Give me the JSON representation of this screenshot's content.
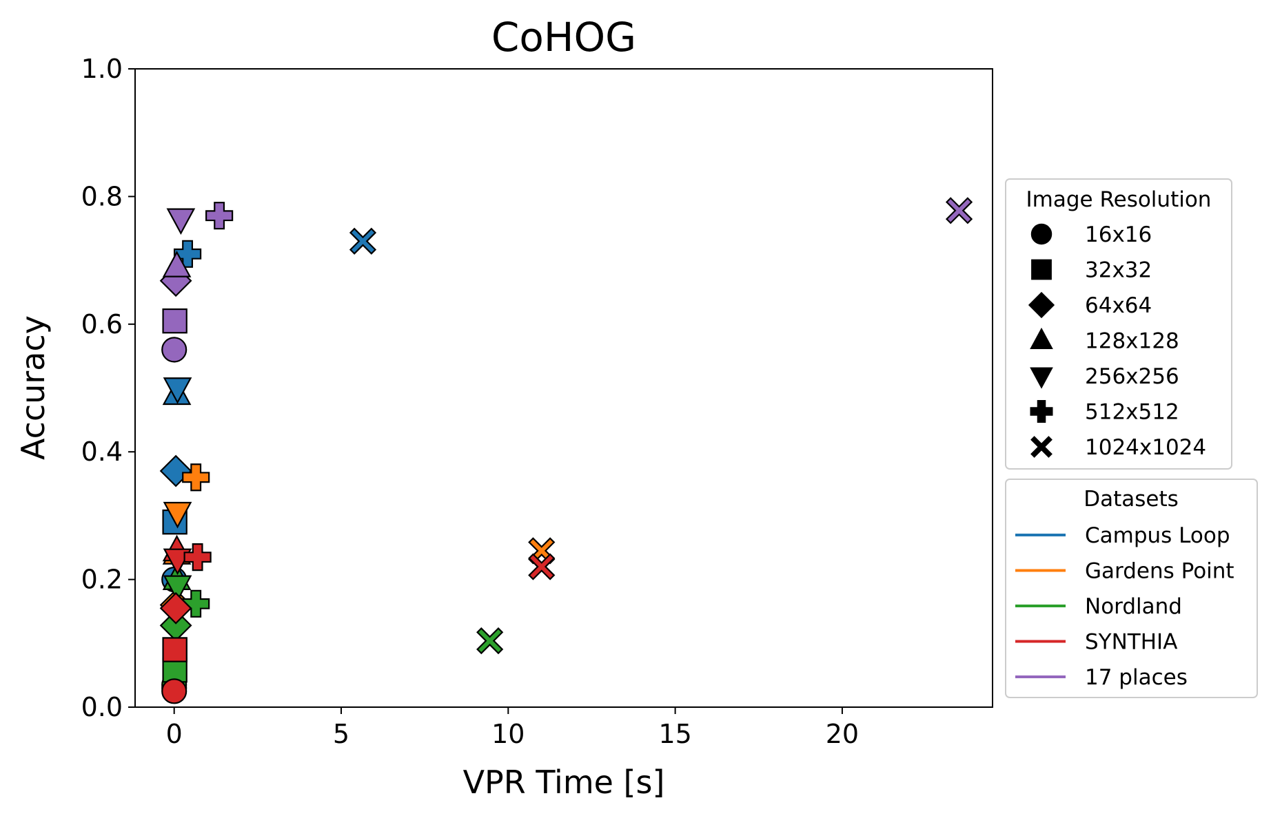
{
  "chart_data": {
    "type": "scatter",
    "title": "CoHOG",
    "xlabel": "VPR Time [s]",
    "ylabel": "Accuracy",
    "xlim": [
      -1.17,
      24.5
    ],
    "ylim": [
      0.0,
      1.0
    ],
    "xticks": [
      0,
      5,
      10,
      15,
      20
    ],
    "xtick_labels": [
      "0",
      "5",
      "10",
      "15",
      "20"
    ],
    "yticks": [
      0.0,
      0.2,
      0.4,
      0.6,
      0.8,
      1.0
    ],
    "ytick_labels": [
      "0.0",
      "0.2",
      "0.4",
      "0.6",
      "0.8",
      "1.0"
    ],
    "grid": false,
    "legend_placement": "outside right",
    "resolution_legend": {
      "title": "Image Resolution",
      "entries": [
        {
          "label": "16x16",
          "marker": "circle"
        },
        {
          "label": "32x32",
          "marker": "square"
        },
        {
          "label": "64x64",
          "marker": "diamond"
        },
        {
          "label": "128x128",
          "marker": "triangle-up"
        },
        {
          "label": "256x256",
          "marker": "triangle-down"
        },
        {
          "label": "512x512",
          "marker": "plus"
        },
        {
          "label": "1024x1024",
          "marker": "x"
        }
      ]
    },
    "dataset_legend": {
      "title": "Datasets",
      "entries": [
        {
          "label": "Campus Loop",
          "color": "#1f77b4"
        },
        {
          "label": "Gardens Point",
          "color": "#ff7f0e"
        },
        {
          "label": "Nordland",
          "color": "#2ca02c"
        },
        {
          "label": "SYNTHIA",
          "color": "#d62728"
        },
        {
          "label": "17 places",
          "color": "#9467bd"
        }
      ]
    },
    "series": [
      {
        "dataset": "Campus Loop",
        "color": "#1f77b4",
        "points": [
          {
            "resolution": "16x16",
            "x": 0.0,
            "y": 0.2
          },
          {
            "resolution": "32x32",
            "x": 0.02,
            "y": 0.29
          },
          {
            "resolution": "64x64",
            "x": 0.05,
            "y": 0.37
          },
          {
            "resolution": "128x128",
            "x": 0.08,
            "y": 0.49
          },
          {
            "resolution": "256x256",
            "x": 0.1,
            "y": 0.5
          },
          {
            "resolution": "512x512",
            "x": 0.4,
            "y": 0.71
          },
          {
            "resolution": "1024x1024",
            "x": 5.65,
            "y": 0.73
          }
        ]
      },
      {
        "dataset": "Gardens Point",
        "color": "#ff7f0e",
        "points": [
          {
            "resolution": "16x16",
            "x": 0.0,
            "y": 0.03
          },
          {
            "resolution": "32x32",
            "x": 0.02,
            "y": 0.09
          },
          {
            "resolution": "64x64",
            "x": 0.05,
            "y": 0.16
          },
          {
            "resolution": "128x128",
            "x": 0.08,
            "y": 0.24
          },
          {
            "resolution": "256x256",
            "x": 0.1,
            "y": 0.305
          },
          {
            "resolution": "512x512",
            "x": 0.65,
            "y": 0.36
          },
          {
            "resolution": "1024x1024",
            "x": 11.0,
            "y": 0.245
          }
        ]
      },
      {
        "dataset": "Nordland",
        "color": "#2ca02c",
        "points": [
          {
            "resolution": "16x16",
            "x": 0.0,
            "y": 0.035
          },
          {
            "resolution": "32x32",
            "x": 0.02,
            "y": 0.058
          },
          {
            "resolution": "64x64",
            "x": 0.05,
            "y": 0.128
          },
          {
            "resolution": "128x128",
            "x": 0.08,
            "y": 0.2
          },
          {
            "resolution": "256x256",
            "x": 0.1,
            "y": 0.19
          },
          {
            "resolution": "512x512",
            "x": 0.65,
            "y": 0.162
          },
          {
            "resolution": "1024x1024",
            "x": 9.45,
            "y": 0.104
          }
        ]
      },
      {
        "dataset": "SYNTHIA",
        "color": "#d62728",
        "points": [
          {
            "resolution": "16x16",
            "x": 0.0,
            "y": 0.025
          },
          {
            "resolution": "32x32",
            "x": 0.02,
            "y": 0.09
          },
          {
            "resolution": "64x64",
            "x": 0.05,
            "y": 0.155
          },
          {
            "resolution": "128x128",
            "x": 0.08,
            "y": 0.245
          },
          {
            "resolution": "256x256",
            "x": 0.1,
            "y": 0.232
          },
          {
            "resolution": "512x512",
            "x": 0.7,
            "y": 0.235
          },
          {
            "resolution": "1024x1024",
            "x": 11.0,
            "y": 0.22
          }
        ]
      },
      {
        "dataset": "17 places",
        "color": "#9467bd",
        "points": [
          {
            "resolution": "16x16",
            "x": 0.0,
            "y": 0.56
          },
          {
            "resolution": "32x32",
            "x": 0.02,
            "y": 0.605
          },
          {
            "resolution": "64x64",
            "x": 0.05,
            "y": 0.668
          },
          {
            "resolution": "128x128",
            "x": 0.08,
            "y": 0.69
          },
          {
            "resolution": "256x256",
            "x": 0.2,
            "y": 0.765
          },
          {
            "resolution": "512x512",
            "x": 1.35,
            "y": 0.77
          },
          {
            "resolution": "1024x1024",
            "x": 23.5,
            "y": 0.778
          }
        ]
      }
    ]
  }
}
